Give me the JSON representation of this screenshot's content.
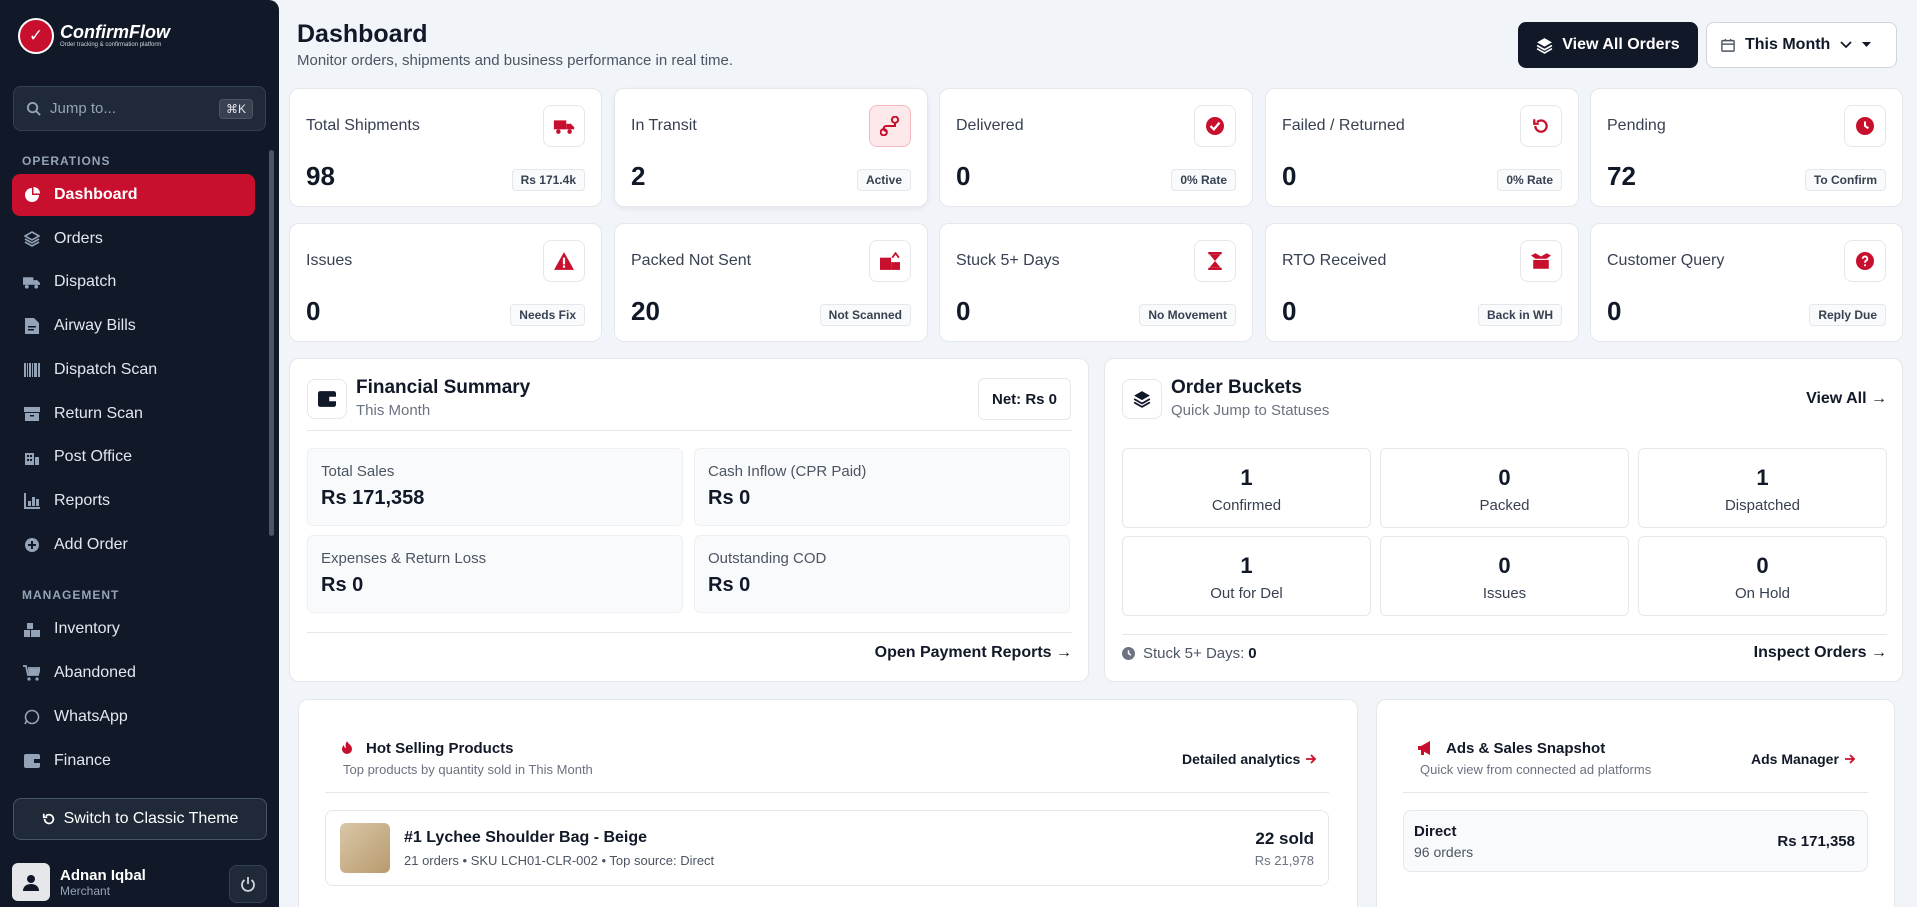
{
  "brand": {
    "name": "ConfirmFlow",
    "tagline": "Order tracking & confirmation platform"
  },
  "sidebar": {
    "search_placeholder": "Jump to...",
    "search_shortcut": "⌘K",
    "operations_label": "OPERATIONS",
    "management_label": "MANAGEMENT",
    "operations": [
      {
        "label": "Dashboard",
        "icon": "pie-chart-icon",
        "active": true
      },
      {
        "label": "Orders",
        "icon": "layers-icon"
      },
      {
        "label": "Dispatch",
        "icon": "truck-icon"
      },
      {
        "label": "Airway Bills",
        "icon": "document-icon"
      },
      {
        "label": "Dispatch Scan",
        "icon": "barcode-icon"
      },
      {
        "label": "Return Scan",
        "icon": "box-icon"
      },
      {
        "label": "Post Office",
        "icon": "building-icon"
      },
      {
        "label": "Reports",
        "icon": "bar-chart-icon"
      },
      {
        "label": "Add Order",
        "icon": "plus-circle-icon"
      }
    ],
    "management": [
      {
        "label": "Inventory",
        "icon": "warehouse-icon"
      },
      {
        "label": "Abandoned",
        "icon": "cart-icon"
      },
      {
        "label": "WhatsApp",
        "icon": "whatsapp-icon"
      },
      {
        "label": "Finance",
        "icon": "wallet-icon"
      }
    ],
    "switch_theme_label": "Switch to Classic Theme",
    "user": {
      "name": "Adnan Iqbal",
      "role": "Merchant"
    }
  },
  "header": {
    "title": "Dashboard",
    "subtitle": "Monitor orders, shipments and business performance in real time.",
    "view_all_orders": "View All Orders",
    "period": "This Month"
  },
  "stats": [
    {
      "label": "Total Shipments",
      "value": "98",
      "badge": "Rs 171.4k",
      "icon": "truck-icon"
    },
    {
      "label": "In Transit",
      "value": "2",
      "badge": "Active",
      "icon": "route-icon",
      "highlight": true
    },
    {
      "label": "Delivered",
      "value": "0",
      "badge": "0% Rate",
      "icon": "check-circle-icon"
    },
    {
      "label": "Failed / Returned",
      "value": "0",
      "badge": "0% Rate",
      "icon": "undo-icon"
    },
    {
      "label": "Pending",
      "value": "72",
      "badge": "To Confirm",
      "icon": "clock-icon"
    },
    {
      "label": "Issues",
      "value": "0",
      "badge": "Needs Fix",
      "icon": "warning-icon"
    },
    {
      "label": "Packed Not Sent",
      "value": "20",
      "badge": "Not Scanned",
      "icon": "dolly-icon"
    },
    {
      "label": "Stuck 5+ Days",
      "value": "0",
      "badge": "No Movement",
      "icon": "hourglass-icon"
    },
    {
      "label": "RTO Received",
      "value": "0",
      "badge": "Back in WH",
      "icon": "box-open-icon"
    },
    {
      "label": "Customer Query",
      "value": "0",
      "badge": "Reply Due",
      "icon": "question-icon"
    }
  ],
  "financial": {
    "title": "Financial Summary",
    "subtitle": "This Month",
    "net": "Net: Rs 0",
    "items": [
      {
        "label": "Total Sales",
        "value": "Rs 171,358"
      },
      {
        "label": "Cash Inflow (CPR Paid)",
        "value": "Rs 0"
      },
      {
        "label": "Expenses & Return Loss",
        "value": "Rs 0"
      },
      {
        "label": "Outstanding COD",
        "value": "Rs 0"
      }
    ],
    "link": "Open Payment Reports →"
  },
  "buckets": {
    "title": "Order Buckets",
    "subtitle": "Quick Jump to Statuses",
    "view_all": "View All →",
    "items": [
      {
        "count": "1",
        "label": "Confirmed"
      },
      {
        "count": "0",
        "label": "Packed"
      },
      {
        "count": "1",
        "label": "Dispatched"
      },
      {
        "count": "1",
        "label": "Out for Del"
      },
      {
        "count": "0",
        "label": "Issues"
      },
      {
        "count": "0",
        "label": "On Hold"
      }
    ],
    "stuck_label": "Stuck 5+ Days:",
    "stuck_value": "0",
    "inspect": "Inspect Orders →"
  },
  "hot_products": {
    "title": "Hot Selling Products",
    "subtitle": "Top products by quantity sold in This Month",
    "link": "Detailed analytics",
    "items": [
      {
        "name": "#1 Lychee Shoulder Bag - Beige",
        "meta": "21 orders • SKU LCH01-CLR-002 • Top source: Direct",
        "sold": "22 sold",
        "revenue": "Rs 21,978"
      }
    ]
  },
  "ads": {
    "title": "Ads & Sales Snapshot",
    "subtitle": "Quick view from connected ad platforms",
    "link": "Ads Manager",
    "direct": {
      "label": "Direct",
      "orders": "96 orders",
      "value": "Rs 171,358"
    }
  },
  "colors": {
    "accent": "#c8102e",
    "sidebar": "#111827"
  }
}
